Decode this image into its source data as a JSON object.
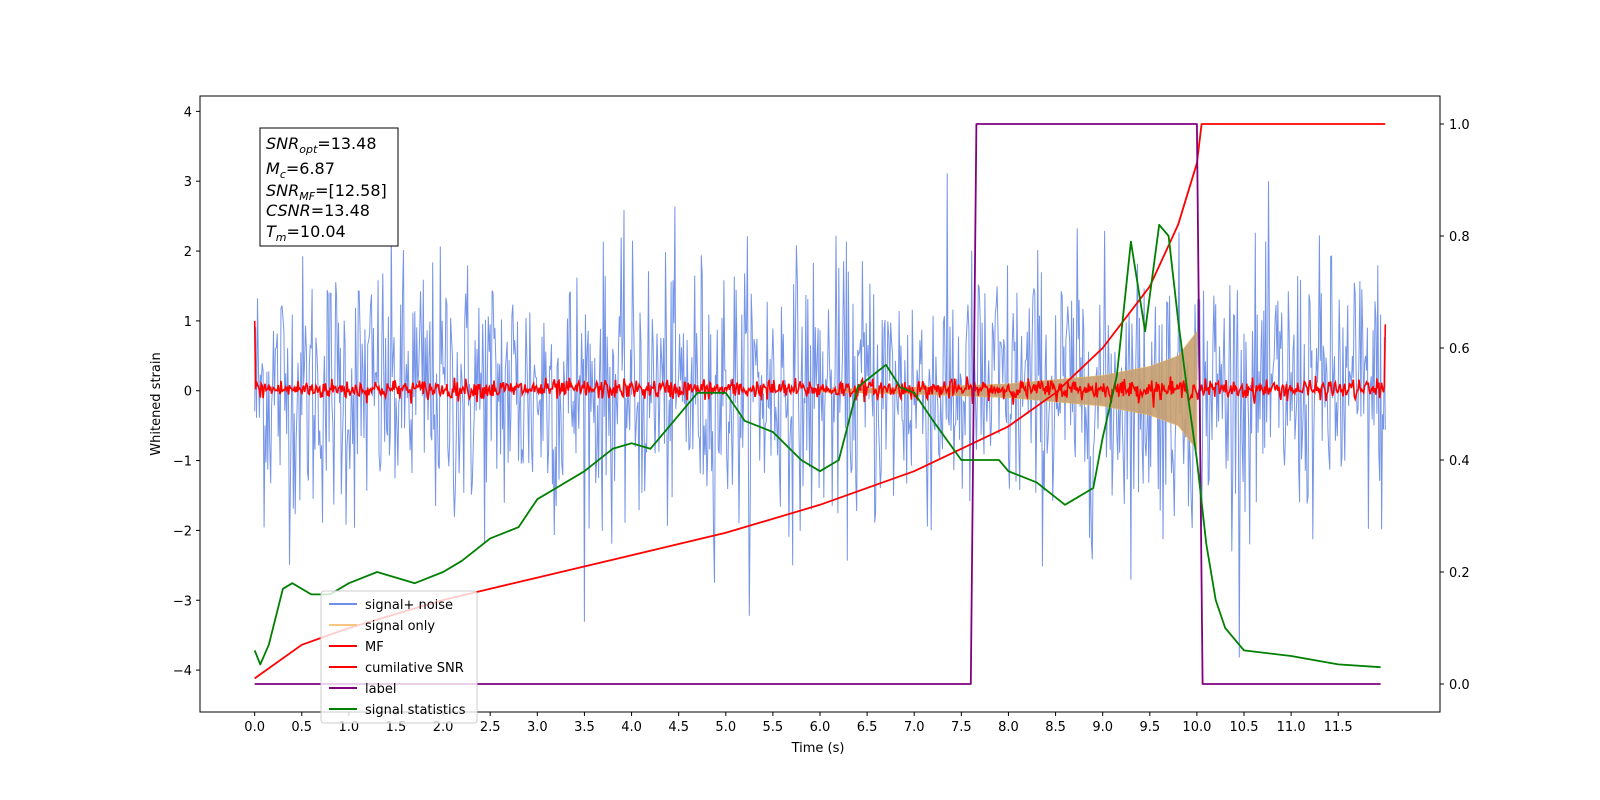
{
  "chart_data": {
    "type": "line",
    "xlabel": "Time (s)",
    "ylabel": "Whitened strain",
    "xlim": [
      -0.58,
      12.58
    ],
    "ylim": [
      -4.6,
      4.22
    ],
    "y2lim": [
      -0.05,
      1.05
    ],
    "x_ticks": [
      "0.0",
      "0.5",
      "1.0",
      "1.5",
      "2.0",
      "2.5",
      "3.0",
      "3.5",
      "4.0",
      "4.5",
      "5.0",
      "5.5",
      "6.0",
      "6.5",
      "7.0",
      "7.5",
      "8.0",
      "8.5",
      "9.0",
      "9.5",
      "10.0",
      "10.5",
      "11.0",
      "11.5"
    ],
    "y_ticks": [
      "4",
      "3",
      "2",
      "1",
      "0",
      "−1",
      "−2",
      "−3",
      "−4"
    ],
    "y2_ticks": [
      "1.0",
      "0.8",
      "0.6",
      "0.4",
      "0.2",
      "0.0"
    ],
    "grid": false,
    "legend_position": "lower-left",
    "annotation": {
      "snr_opt": {
        "base": "SNR",
        "sub": "opt",
        "value": "=13.48"
      },
      "mc": {
        "base": "M",
        "sub": "c",
        "value": "=6.87"
      },
      "snr_mf": {
        "base": "SNR",
        "sub": "MF",
        "value": "=[12.58]"
      },
      "csnr": {
        "base": "CSNR",
        "value": "=13.48"
      },
      "tm": {
        "base": "T",
        "sub": "m",
        "value": "=10.04"
      }
    },
    "series": [
      {
        "name": "signal+ noise",
        "color": "#6f8fe6",
        "axis": "left",
        "kind": "noise",
        "t_start": 0.0,
        "t_end": 12.0,
        "mean": 0.0,
        "std": 0.95,
        "peak_max": 3.82,
        "peak_min": -4.18,
        "samples": 1200
      },
      {
        "name": "signal only",
        "color": "#c8a070",
        "axis": "left",
        "kind": "chirp_envelope",
        "t_start": 6.0,
        "t_merger": 10.0,
        "t_end": 10.04,
        "amplitude": [
          [
            6.0,
            0.02
          ],
          [
            7.0,
            0.05
          ],
          [
            8.0,
            0.1
          ],
          [
            9.0,
            0.22
          ],
          [
            9.5,
            0.35
          ],
          [
            9.8,
            0.5
          ],
          [
            10.0,
            0.85
          ]
        ]
      },
      {
        "name": "MF",
        "color": "#ff0000",
        "axis": "left",
        "kind": "noise",
        "t_start": 0.0,
        "t_end": 12.0,
        "mean": 0.02,
        "std": 0.07,
        "start_value": 1.0,
        "end_value": 0.95,
        "samples": 1200
      },
      {
        "name": "cumilative SNR",
        "color": "#ff0000",
        "axis": "right",
        "x": [
          0.0,
          0.5,
          1.0,
          2.0,
          3.0,
          4.0,
          5.0,
          6.0,
          7.0,
          7.5,
          8.0,
          8.5,
          9.0,
          9.5,
          9.8,
          10.0,
          10.05,
          12.0
        ],
        "y": [
          0.01,
          0.07,
          0.1,
          0.15,
          0.19,
          0.23,
          0.27,
          0.32,
          0.38,
          0.42,
          0.46,
          0.52,
          0.6,
          0.71,
          0.82,
          0.93,
          1.0,
          1.0
        ]
      },
      {
        "name": "label",
        "color": "#800080",
        "axis": "right",
        "x": [
          0.0,
          7.6,
          7.66,
          10.0,
          10.06,
          11.95
        ],
        "y": [
          0.0,
          0.0,
          1.0,
          1.0,
          0.0,
          0.0
        ]
      },
      {
        "name": "signal statistics",
        "color": "#008000",
        "axis": "right",
        "x": [
          0.0,
          0.06,
          0.15,
          0.3,
          0.4,
          0.6,
          0.8,
          1.0,
          1.3,
          1.5,
          1.7,
          2.0,
          2.2,
          2.5,
          2.8,
          3.0,
          3.2,
          3.5,
          3.8,
          4.0,
          4.2,
          4.5,
          4.7,
          5.0,
          5.2,
          5.5,
          5.8,
          6.0,
          6.2,
          6.4,
          6.55,
          6.7,
          6.85,
          7.0,
          7.2,
          7.5,
          7.7,
          7.9,
          8.0,
          8.3,
          8.6,
          8.9,
          9.0,
          9.15,
          9.3,
          9.45,
          9.6,
          9.7,
          9.8,
          9.9,
          10.0,
          10.1,
          10.2,
          10.3,
          10.5,
          11.0,
          11.5,
          11.95
        ],
        "y": [
          0.06,
          0.035,
          0.07,
          0.17,
          0.18,
          0.16,
          0.16,
          0.18,
          0.2,
          0.19,
          0.18,
          0.2,
          0.22,
          0.26,
          0.28,
          0.33,
          0.35,
          0.38,
          0.42,
          0.43,
          0.42,
          0.48,
          0.52,
          0.52,
          0.47,
          0.45,
          0.4,
          0.38,
          0.4,
          0.53,
          0.55,
          0.57,
          0.53,
          0.52,
          0.47,
          0.4,
          0.4,
          0.4,
          0.38,
          0.36,
          0.32,
          0.35,
          0.44,
          0.55,
          0.79,
          0.63,
          0.82,
          0.8,
          0.65,
          0.52,
          0.4,
          0.25,
          0.15,
          0.1,
          0.06,
          0.05,
          0.035,
          0.03
        ]
      }
    ]
  }
}
